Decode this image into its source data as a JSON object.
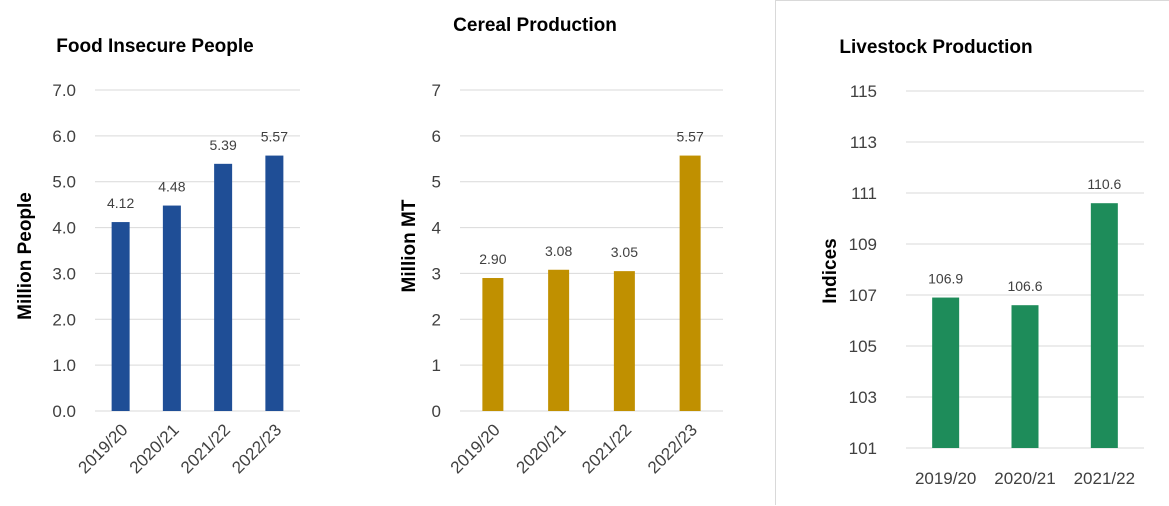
{
  "chart_data": [
    {
      "type": "bar",
      "title": "Food Insecure People",
      "xlabel": "",
      "ylabel": "Million People",
      "categories": [
        "2019/20",
        "2020/21",
        "2021/22",
        "2022/23"
      ],
      "values": [
        4.12,
        4.48,
        5.39,
        5.57
      ],
      "data_labels": [
        "4.12",
        "4.48",
        "5.39",
        "5.57"
      ],
      "ylim": [
        0,
        7
      ],
      "y_ticks": [
        "0.0",
        "1.0",
        "2.0",
        "3.0",
        "4.0",
        "5.0",
        "6.0",
        "7.0"
      ],
      "grid": true,
      "x_tick_rotation": "rotated",
      "bar_color": "#1f4e96"
    },
    {
      "type": "bar",
      "title": "Cereal Production",
      "xlabel": "",
      "ylabel": "Million MT",
      "categories": [
        "2019/20",
        "2020/21",
        "2021/22",
        "2022/23"
      ],
      "values": [
        2.9,
        3.08,
        3.05,
        5.57
      ],
      "data_labels": [
        "2.90",
        "3.08",
        "3.05",
        "5.57"
      ],
      "ylim": [
        0,
        7
      ],
      "y_ticks": [
        "0",
        "1",
        "2",
        "3",
        "4",
        "5",
        "6",
        "7"
      ],
      "grid": true,
      "x_tick_rotation": "rotated",
      "bar_color": "#c09000"
    },
    {
      "type": "bar",
      "title": "Livestock Production",
      "xlabel": "",
      "ylabel": "Indices",
      "categories": [
        "2019/20",
        "2020/21",
        "2021/22"
      ],
      "values": [
        106.9,
        106.6,
        110.6
      ],
      "data_labels": [
        "106.9",
        "106.6",
        "110.6"
      ],
      "ylim": [
        101,
        115
      ],
      "y_ticks": [
        "101",
        "103",
        "105",
        "107",
        "109",
        "111",
        "113",
        "115"
      ],
      "grid": true,
      "x_tick_rotation": "horizontal",
      "bar_color": "#1e8c5a"
    }
  ]
}
